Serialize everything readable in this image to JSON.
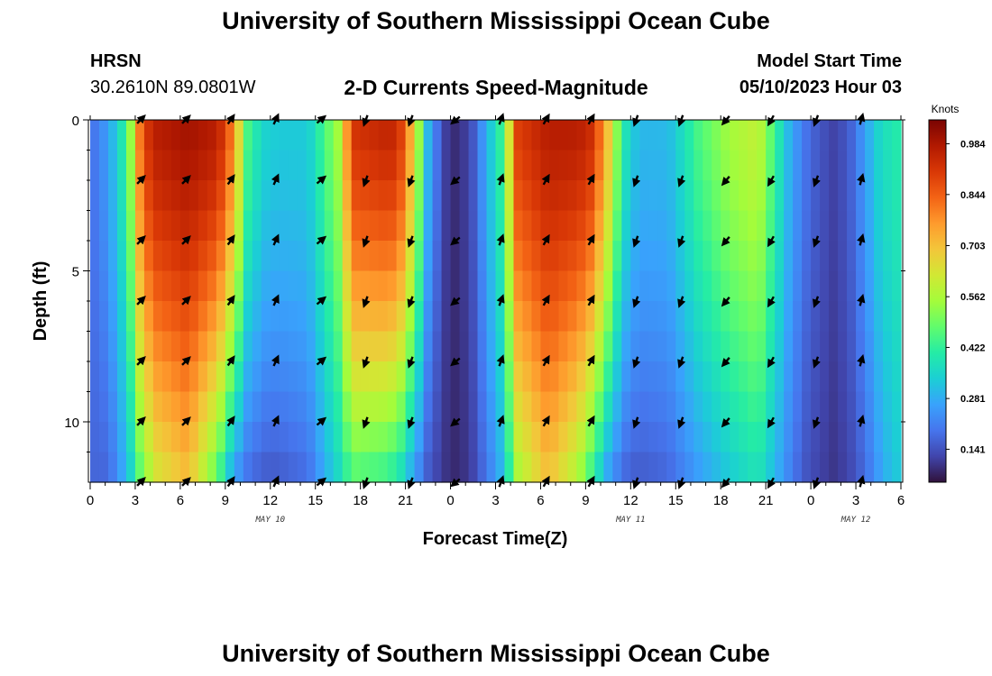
{
  "page": {
    "title_top": "University of Southern Mississippi Ocean Cube",
    "title_bottom": "University of Southern Mississippi Ocean Cube",
    "station": "HRSN",
    "coords": "30.2610N  89.0801W",
    "subtitle": "2-D Currents Speed-Magnitude",
    "model_start_label": "Model Start Time",
    "model_start_value": "05/10/2023 Hour 03"
  },
  "chart_data": {
    "type": "heatmap",
    "title": "2-D Currents Speed-Magnitude",
    "xlabel": "Forecast Time(Z)",
    "ylabel": "Depth (ft)",
    "xlim": [
      0,
      54
    ],
    "ylim": [
      0,
      12
    ],
    "x_ticks": [
      0,
      3,
      6,
      9,
      12,
      15,
      18,
      21,
      24,
      27,
      30,
      33,
      36,
      39,
      42,
      45,
      48,
      51,
      54
    ],
    "x_tick_labels": [
      "0",
      "3",
      "6",
      "9",
      "12",
      "15",
      "18",
      "21",
      "0",
      "3",
      "6",
      "9",
      "12",
      "15",
      "18",
      "21",
      "0",
      "3",
      "6"
    ],
    "y_ticks": [
      0,
      5,
      10
    ],
    "y_tick_labels": [
      "0",
      "5",
      "10"
    ],
    "date_labels": [
      {
        "x": 12,
        "text": "MAY 10"
      },
      {
        "x": 36,
        "text": "MAY 11"
      },
      {
        "x": 51,
        "text": "MAY 12"
      }
    ],
    "colorbar": {
      "label": "Knots",
      "min": 0.05,
      "max": 1.05,
      "ticks": [
        0.984,
        0.844,
        0.703,
        0.562,
        0.422,
        0.281,
        0.141
      ],
      "colors": [
        "#30123b",
        "#4145ab",
        "#4675ed",
        "#39a2fc",
        "#1bcfd4",
        "#24eca6",
        "#61fc6c",
        "#a4fc3b",
        "#d1e834",
        "#f3c63a",
        "#fe9b2d",
        "#f36315",
        "#d93806",
        "#b11901",
        "#7a0402"
      ]
    },
    "speed_profiles": {
      "hours": [
        0,
        0.5,
        1.5,
        2.5,
        3.5,
        4.5,
        6.5,
        8.5,
        9.5,
        10.5,
        11.5,
        12.5,
        14.5,
        16.5,
        17.5,
        19.5,
        20.5,
        21.5,
        22.5,
        23.5,
        24.5,
        25.5,
        26.5,
        27.5,
        28.5,
        30.5,
        32.5,
        33.5,
        34.5,
        35.5,
        36.5,
        38.5,
        40.5,
        42.5,
        44.5,
        45.5,
        46.5,
        47.5,
        48.5,
        49.5,
        50.5,
        51.5,
        52.5,
        53.5,
        54
      ],
      "surface": [
        0.2,
        0.2,
        0.3,
        0.45,
        0.9,
        0.97,
        1.0,
        0.97,
        0.8,
        0.45,
        0.35,
        0.33,
        0.33,
        0.55,
        0.92,
        0.95,
        0.95,
        0.7,
        0.3,
        0.12,
        0.08,
        0.15,
        0.3,
        0.45,
        0.9,
        0.97,
        0.97,
        0.93,
        0.7,
        0.4,
        0.3,
        0.3,
        0.45,
        0.55,
        0.6,
        0.45,
        0.3,
        0.2,
        0.15,
        0.12,
        0.15,
        0.25,
        0.35,
        0.4,
        0.4
      ],
      "bottom": [
        0.2,
        0.15,
        0.2,
        0.3,
        0.5,
        0.62,
        0.7,
        0.45,
        0.25,
        0.18,
        0.15,
        0.15,
        0.18,
        0.35,
        0.45,
        0.42,
        0.38,
        0.25,
        0.15,
        0.1,
        0.08,
        0.12,
        0.2,
        0.3,
        0.55,
        0.7,
        0.55,
        0.4,
        0.25,
        0.17,
        0.15,
        0.17,
        0.25,
        0.32,
        0.38,
        0.3,
        0.22,
        0.15,
        0.12,
        0.1,
        0.12,
        0.17,
        0.25,
        0.32,
        0.32
      ]
    },
    "vector_rows_depth_ft": [
      0,
      2,
      4,
      6,
      8,
      10,
      12
    ],
    "vector_cols_hours": [
      3,
      6,
      9,
      12,
      15,
      18,
      21,
      24,
      27,
      30,
      33,
      36,
      39,
      42,
      45,
      48,
      51
    ],
    "vector_directions_deg": [
      45,
      45,
      35,
      25,
      50,
      200,
      200,
      230,
      20,
      30,
      30,
      200,
      200,
      220,
      210,
      200,
      15
    ],
    "annotation": "Knots"
  }
}
